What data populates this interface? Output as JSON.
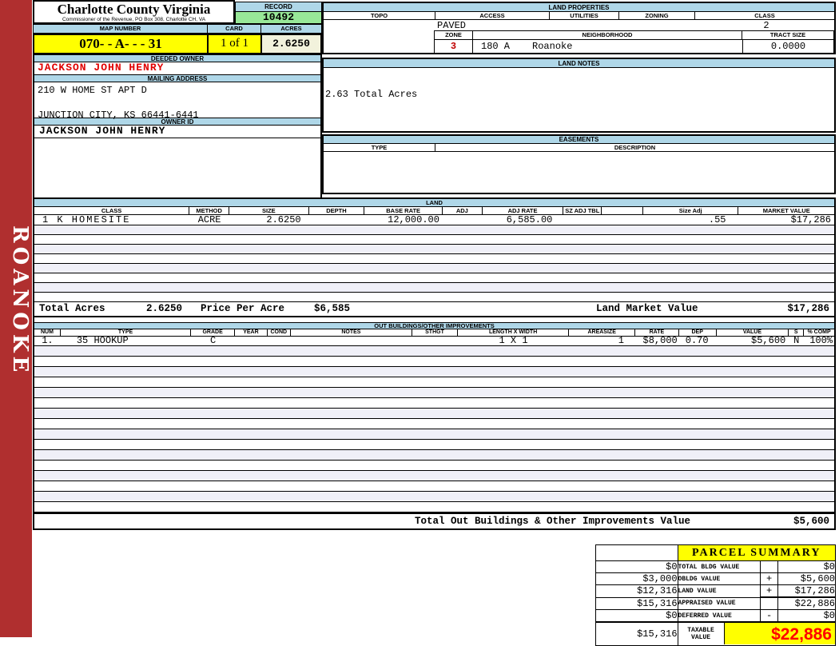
{
  "colors": {
    "sidebar_red": "#B02F2F",
    "header_blue": "#AFD7E8",
    "record_green": "#98E898",
    "highlight_yellow": "#FFFF00",
    "acres_beige": "#F2F2DC",
    "owner_name_red": "#E00000",
    "taxable_value_red": "#FF0000"
  },
  "sidebar": {
    "label": "ROANOKE"
  },
  "header": {
    "county_title": "Charlotte County Virginia",
    "county_subtitle": "Commissioner of the Revenue, PO Box 308, Charlotte CH, VA",
    "record_label": "RECORD",
    "record_value": "10492",
    "map_number_label": "MAP NUMBER",
    "map_number_value": "070- - A- - - 31",
    "card_label": "CARD",
    "card_value": "1 of 1",
    "acres_label": "ACRES",
    "acres_value": "2.6250"
  },
  "owner": {
    "deeded_owner_label": "DEEDED OWNER",
    "deeded_owner": "JACKSON JOHN HENRY",
    "mailing_address_label": "MAILING ADDRESS",
    "address_line1": "210 W HOME ST APT D",
    "address_line2": "JUNCTION CITY, KS 66441-6441",
    "owner_id_label": "OWNER ID",
    "owner_id": "JACKSON JOHN HENRY"
  },
  "land_properties": {
    "title": "LAND PROPERTIES",
    "topo_label": "TOPO",
    "access_label": "ACCESS",
    "utilities_label": "UTILITIES",
    "zoning_label": "ZONING",
    "class_label": "CLASS",
    "access_value": "PAVED",
    "class_value": "2",
    "zone_label": "ZONE",
    "neighborhood_label": "NEIGHBORHOOD",
    "tract_size_label": "TRACT SIZE",
    "zone_value": "3",
    "neighborhood_code": "180 A",
    "neighborhood_name": "Roanoke",
    "tract_size_value": "0.0000"
  },
  "land_notes": {
    "title": "LAND NOTES",
    "note": "2.63 Total Acres"
  },
  "easements": {
    "title": "EASEMENTS",
    "type_label": "TYPE",
    "description_label": "DESCRIPTION"
  },
  "land": {
    "title": "LAND",
    "headers": [
      "CLASS",
      "METHOD",
      "SIZE",
      "DEPTH",
      "BASE RATE",
      "ADJ",
      "ADJ RATE",
      "SZ ADJ TBL",
      "",
      "Size Adj",
      "MARKET VALUE"
    ],
    "rows": [
      {
        "class": "1 K HOMESITE",
        "method": "ACRE",
        "size": "2.6250",
        "depth": "",
        "base_rate": "12,000.00",
        "adj": "",
        "adj_rate": "6,585.00",
        "sz_adj_tbl": "",
        "size_adj": ".55",
        "market_value": "$17,286"
      }
    ],
    "totals": {
      "total_acres_label": "Total Acres",
      "total_acres": "2.6250",
      "price_per_acre_label": "Price Per Acre",
      "price_per_acre": "$6,585",
      "land_market_value_label": "Land Market Value",
      "land_market_value": "$17,286"
    }
  },
  "out_buildings": {
    "title": "OUT BUILDINGS/OTHER IMPROVEMENTS",
    "headers": [
      "NUM",
      "TYPE",
      "GRADE",
      "YEAR",
      "COND",
      "NOTES",
      "STHGT",
      "LENGTH X WIDTH",
      "AREASIZE",
      "RATE",
      "DEP",
      "VALUE",
      "S",
      "% COMP"
    ],
    "rows": [
      {
        "num": "1.",
        "type": "35 HOOKUP",
        "grade": "C",
        "year": "",
        "cond": "",
        "notes": "",
        "sthgt": "",
        "length_x_width": "1 X 1",
        "areasize": "1",
        "rate": "$8,000",
        "dep": "0.70",
        "value": "$5,600",
        "s": "N",
        "pct_comp": "100%"
      }
    ],
    "total_label": "Total Out Buildings & Other Improvements Value",
    "total_value": "$5,600"
  },
  "parcel_summary": {
    "title": "PARCEL SUMMARY",
    "rows": [
      {
        "prior": "$0",
        "label": "TOTAL BLDG VALUE",
        "op": "",
        "value": "$0"
      },
      {
        "prior": "$3,000",
        "label": "OBLDG VALUE",
        "op": "+",
        "value": "$5,600"
      },
      {
        "prior": "$12,316",
        "label": "LAND VALUE",
        "op": "+",
        "value": "$17,286"
      },
      {
        "prior": "$15,316",
        "label": "APPRAISED VALUE",
        "op": "",
        "value": "$22,886"
      },
      {
        "prior": "$0",
        "label": "DEFERRED VALUE",
        "op": "-",
        "value": "$0"
      }
    ],
    "taxable": {
      "prior": "$15,316",
      "label": "TAXABLE VALUE",
      "value": "$22,886"
    }
  }
}
